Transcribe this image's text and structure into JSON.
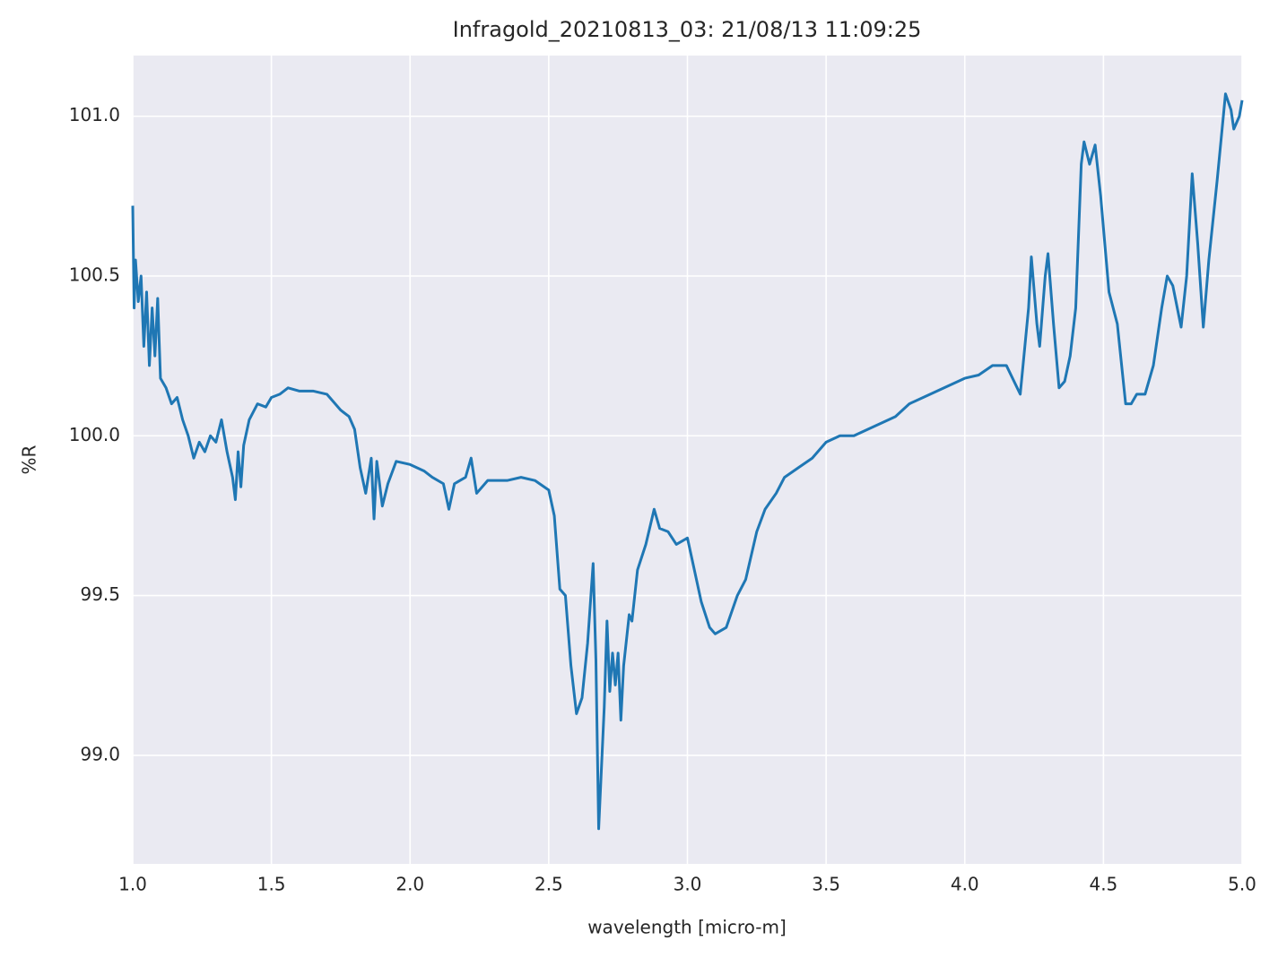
{
  "chart_data": {
    "type": "line",
    "title": "Infragold_20210813_03:  21/08/13 11:09:25",
    "xlabel": "wavelength [micro-m]",
    "ylabel": "%R",
    "x": [
      1.0,
      1.005,
      1.01,
      1.02,
      1.03,
      1.04,
      1.05,
      1.06,
      1.07,
      1.08,
      1.09,
      1.1,
      1.12,
      1.14,
      1.16,
      1.18,
      1.2,
      1.22,
      1.24,
      1.26,
      1.28,
      1.3,
      1.32,
      1.34,
      1.36,
      1.37,
      1.38,
      1.39,
      1.4,
      1.42,
      1.45,
      1.48,
      1.5,
      1.53,
      1.56,
      1.6,
      1.65,
      1.7,
      1.75,
      1.78,
      1.8,
      1.82,
      1.84,
      1.86,
      1.87,
      1.88,
      1.9,
      1.92,
      1.95,
      2.0,
      2.05,
      2.08,
      2.12,
      2.14,
      2.16,
      2.2,
      2.22,
      2.24,
      2.28,
      2.35,
      2.4,
      2.45,
      2.5,
      2.52,
      2.54,
      2.56,
      2.58,
      2.6,
      2.62,
      2.64,
      2.66,
      2.67,
      2.68,
      2.7,
      2.71,
      2.72,
      2.73,
      2.74,
      2.75,
      2.76,
      2.77,
      2.79,
      2.8,
      2.82,
      2.85,
      2.88,
      2.9,
      2.93,
      2.96,
      3.0,
      3.02,
      3.05,
      3.08,
      3.1,
      3.14,
      3.18,
      3.21,
      3.25,
      3.28,
      3.32,
      3.35,
      3.4,
      3.45,
      3.5,
      3.55,
      3.6,
      3.65,
      3.7,
      3.75,
      3.8,
      3.85,
      3.9,
      3.95,
      4.0,
      4.05,
      4.1,
      4.15,
      4.2,
      4.23,
      4.24,
      4.26,
      4.27,
      4.29,
      4.3,
      4.32,
      4.34,
      4.36,
      4.38,
      4.4,
      4.42,
      4.43,
      4.45,
      4.47,
      4.49,
      4.52,
      4.55,
      4.58,
      4.6,
      4.62,
      4.65,
      4.68,
      4.71,
      4.73,
      4.75,
      4.78,
      4.8,
      4.82,
      4.84,
      4.86,
      4.88,
      4.91,
      4.94,
      4.96,
      4.97,
      4.99,
      5.0
    ],
    "series": [
      {
        "color": "#1f77b4",
        "values": [
          100.72,
          100.4,
          100.55,
          100.42,
          100.5,
          100.28,
          100.45,
          100.22,
          100.4,
          100.25,
          100.43,
          100.18,
          100.15,
          100.1,
          100.12,
          100.05,
          100.0,
          99.93,
          99.98,
          99.95,
          100.0,
          99.98,
          100.05,
          99.95,
          99.87,
          99.8,
          99.95,
          99.84,
          99.97,
          100.05,
          100.1,
          100.09,
          100.12,
          100.13,
          100.15,
          100.14,
          100.14,
          100.13,
          100.08,
          100.06,
          100.02,
          99.9,
          99.82,
          99.93,
          99.74,
          99.92,
          99.78,
          99.85,
          99.92,
          99.91,
          99.89,
          99.87,
          99.85,
          99.77,
          99.85,
          99.87,
          99.93,
          99.82,
          99.86,
          99.86,
          99.87,
          99.86,
          99.83,
          99.75,
          99.52,
          99.5,
          99.28,
          99.13,
          99.18,
          99.35,
          99.6,
          99.3,
          98.77,
          99.15,
          99.42,
          99.2,
          99.32,
          99.22,
          99.32,
          99.11,
          99.28,
          99.44,
          99.42,
          99.58,
          99.66,
          99.77,
          99.71,
          99.7,
          99.66,
          99.68,
          99.6,
          99.48,
          99.4,
          99.38,
          99.4,
          99.5,
          99.55,
          99.7,
          99.77,
          99.82,
          99.87,
          99.9,
          99.93,
          99.98,
          100.0,
          100.0,
          100.02,
          100.04,
          100.06,
          100.1,
          100.12,
          100.14,
          100.16,
          100.18,
          100.19,
          100.22,
          100.22,
          100.13,
          100.4,
          100.56,
          100.35,
          100.28,
          100.5,
          100.57,
          100.35,
          100.15,
          100.17,
          100.25,
          100.4,
          100.85,
          100.92,
          100.85,
          100.91,
          100.75,
          100.45,
          100.35,
          100.1,
          100.1,
          100.13,
          100.13,
          100.22,
          100.4,
          100.5,
          100.47,
          100.34,
          100.5,
          100.82,
          100.6,
          100.34,
          100.55,
          100.8,
          101.07,
          101.02,
          100.96,
          101.0,
          101.05
        ]
      }
    ],
    "xlim": [
      1,
      5
    ],
    "xticks": [
      {
        "value": 1,
        "label": "1.0"
      },
      1.5,
      {
        "value": 2,
        "label": "2.0"
      },
      2.5,
      {
        "value": 3,
        "label": "3.0"
      },
      3.5,
      {
        "value": 4,
        "label": "4.0"
      },
      4.5,
      {
        "value": 5,
        "label": "5.0"
      }
    ],
    "ylim": [
      98.66,
      101.19
    ],
    "yticks": [
      {
        "value": 99,
        "label": "99.0"
      },
      99.5,
      {
        "value": 100,
        "label": "100.0"
      },
      100.5,
      {
        "value": 101,
        "label": "101.0"
      }
    ],
    "grid": true,
    "background": "#eaeaf2"
  }
}
